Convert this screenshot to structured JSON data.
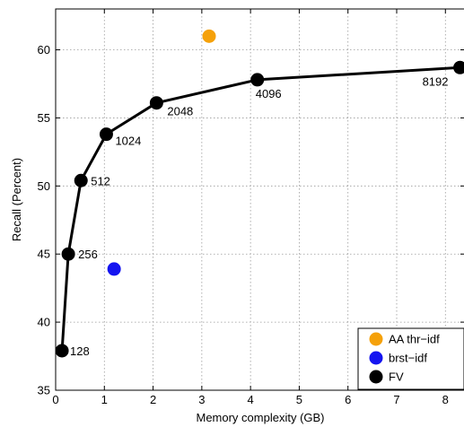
{
  "chart_data": {
    "type": "line",
    "xlabel": "Memory complexity (GB)",
    "ylabel": "Recall (Percent)",
    "xlim": [
      0,
      8.4
    ],
    "ylim": [
      35,
      63
    ],
    "xticks": [
      "0",
      "1",
      "2",
      "3",
      "4",
      "5",
      "6",
      "7",
      "8"
    ],
    "yticks": [
      "35",
      "40",
      "45",
      "50",
      "55",
      "60"
    ],
    "grid": true,
    "legend_position": "bottom-right",
    "series": [
      {
        "name": "AA thr−idf",
        "kind": "marker",
        "color": "#f5a10a",
        "points": [
          {
            "x": 3.15,
            "y": 61.0
          }
        ]
      },
      {
        "name": "brst−idf",
        "kind": "marker",
        "color": "#1414f0",
        "points": [
          {
            "x": 1.2,
            "y": 43.9
          }
        ]
      },
      {
        "name": "FV",
        "kind": "line",
        "color": "#000000",
        "points": [
          {
            "x": 0.13,
            "y": 37.9,
            "label": "128"
          },
          {
            "x": 0.26,
            "y": 45.0,
            "label": "256"
          },
          {
            "x": 0.52,
            "y": 50.4,
            "label": "512"
          },
          {
            "x": 1.04,
            "y": 53.8,
            "label": "1024"
          },
          {
            "x": 2.07,
            "y": 56.1,
            "label": "2048"
          },
          {
            "x": 4.14,
            "y": 57.8,
            "label": "4096"
          },
          {
            "x": 8.3,
            "y": 58.7,
            "label": "8192"
          }
        ]
      }
    ]
  }
}
